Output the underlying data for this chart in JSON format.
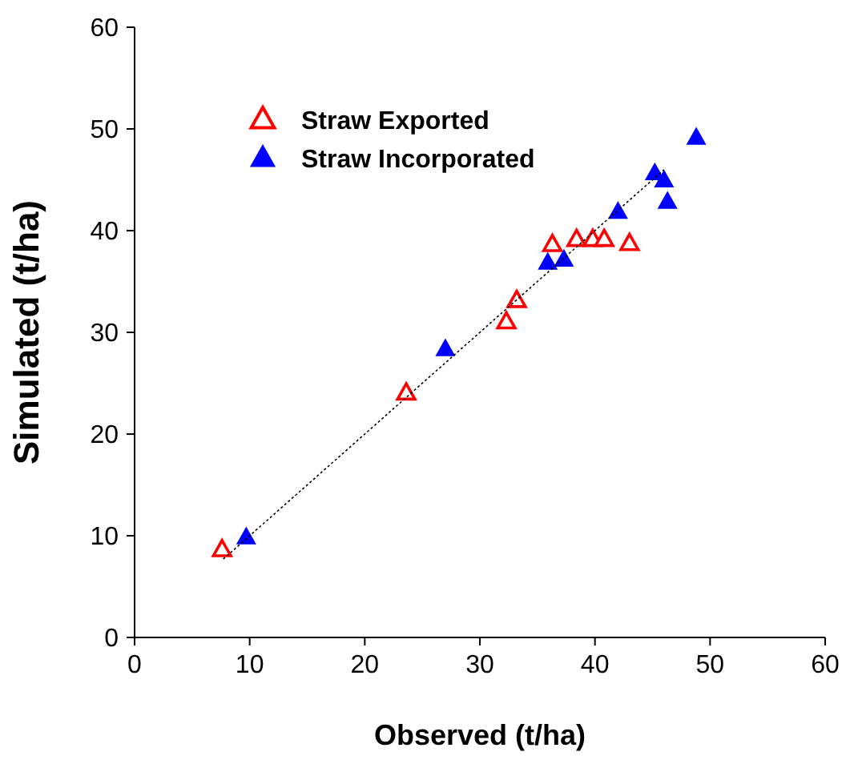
{
  "chart_data": {
    "type": "scatter",
    "xlabel": "Observed (t/ha)",
    "ylabel": "Simulated  (t/ha)",
    "xlim": [
      0,
      60
    ],
    "ylim": [
      0,
      60
    ],
    "xticks": [
      0,
      10,
      20,
      30,
      40,
      50,
      60
    ],
    "yticks": [
      0,
      10,
      20,
      30,
      40,
      50,
      60
    ],
    "grid": false,
    "legend": "top left",
    "marker": "triangle",
    "series": [
      {
        "name": "Straw Exported",
        "color": "#ff0000",
        "x": [
          7.6,
          23.6,
          32.3,
          33.2,
          36.3,
          38.4,
          39.8,
          40.8,
          43.0
        ],
        "values": [
          8.6,
          24.0,
          31.0,
          33.1,
          38.6,
          39.1,
          39.1,
          39.1,
          38.7
        ]
      },
      {
        "name": "Straw Incorporated",
        "color": "#0000ff",
        "x": [
          9.7,
          27.0,
          35.9,
          37.3,
          42.0,
          45.2,
          46.0,
          46.3,
          48.8
        ],
        "values": [
          9.8,
          28.3,
          36.8,
          37.1,
          41.8,
          45.6,
          44.9,
          42.8,
          49.1
        ]
      },
      {
        "type": "line",
        "color": "#000000",
        "marker": "none",
        "line_style": "dotted",
        "x": [
          7.7,
          46.0
        ],
        "values": [
          7.7,
          46.0
        ]
      }
    ]
  }
}
